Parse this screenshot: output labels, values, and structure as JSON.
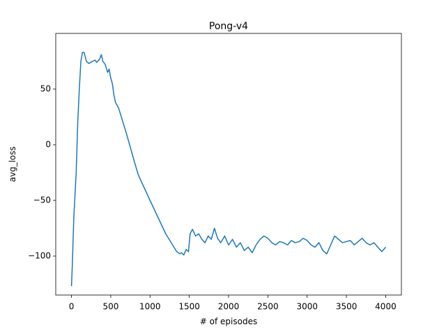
{
  "chart_data": {
    "type": "line",
    "title": "Pong-v4",
    "xlabel": "# of episodes",
    "ylabel": "avg_loss",
    "color": "#1f77b4",
    "grid": false,
    "xlim": [
      -200,
      4200
    ],
    "xticks": [
      0,
      500,
      1000,
      1500,
      2000,
      2500,
      3000,
      3500,
      4000
    ],
    "ylim": [
      -135,
      100
    ],
    "yticks": [
      {
        "value": -100,
        "label": "−100"
      },
      {
        "value": -50,
        "label": "−50"
      },
      0,
      50
    ],
    "x": [
      0,
      10,
      30,
      60,
      80,
      100,
      120,
      140,
      160,
      190,
      220,
      300,
      320,
      360,
      380,
      400,
      430,
      460,
      480,
      500,
      520,
      540,
      560,
      600,
      700,
      800,
      850,
      1000,
      1200,
      1340,
      1380,
      1400,
      1430,
      1460,
      1490,
      1510,
      1540,
      1580,
      1620,
      1660,
      1700,
      1740,
      1780,
      1820,
      1860,
      1900,
      1950,
      2000,
      2050,
      2100,
      2150,
      2200,
      2250,
      2300,
      2350,
      2400,
      2450,
      2500,
      2550,
      2600,
      2650,
      2700,
      2750,
      2800,
      2850,
      2900,
      2950,
      3000,
      3050,
      3100,
      3150,
      3200,
      3250,
      3300,
      3350,
      3400,
      3450,
      3500,
      3550,
      3600,
      3650,
      3700,
      3750,
      3800,
      3850,
      3900,
      3950,
      4000
    ],
    "values": [
      -127,
      -110,
      -65,
      -25,
      20,
      50,
      75,
      83,
      83,
      75,
      73,
      76,
      74,
      77,
      81,
      75,
      72,
      65,
      68,
      60,
      55,
      45,
      38,
      33,
      10,
      -15,
      -27,
      -50,
      -80,
      -96,
      -98,
      -97,
      -99,
      -94,
      -96,
      -80,
      -76,
      -82,
      -80,
      -85,
      -88,
      -82,
      -85,
      -75,
      -84,
      -88,
      -82,
      -90,
      -85,
      -92,
      -88,
      -95,
      -92,
      -97,
      -90,
      -85,
      -82,
      -84,
      -88,
      -90,
      -87,
      -88,
      -90,
      -86,
      -88,
      -87,
      -84,
      -86,
      -90,
      -92,
      -88,
      -95,
      -98,
      -90,
      -82,
      -85,
      -88,
      -87,
      -86,
      -90,
      -87,
      -84,
      -88,
      -90,
      -88,
      -92,
      -96,
      -92
    ]
  }
}
